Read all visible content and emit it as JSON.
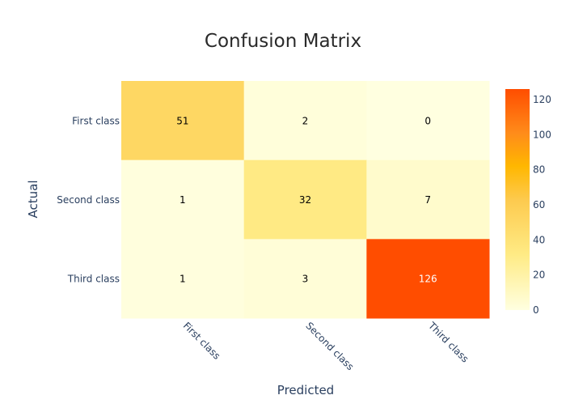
{
  "chart_data": {
    "type": "heatmap",
    "title": "Confusion Matrix",
    "xlabel": "Predicted",
    "ylabel": "Actual",
    "x_categories": [
      "First class",
      "Second class",
      "Third class"
    ],
    "y_categories": [
      "First class",
      "Second class",
      "Third class"
    ],
    "z": [
      [
        51,
        2,
        0
      ],
      [
        1,
        32,
        7
      ],
      [
        1,
        3,
        126
      ]
    ],
    "colorscale": [
      [
        0.0,
        "#ffffe0"
      ],
      [
        0.25,
        "#ffeb85"
      ],
      [
        0.5,
        "#fdca4e"
      ],
      [
        0.65,
        "#ffb700"
      ],
      [
        0.8,
        "#ff8c1a"
      ],
      [
        1.0,
        "#ff4d00"
      ]
    ],
    "zmin": 0,
    "zmax": 126,
    "colorbar_ticks": [
      0,
      20,
      40,
      60,
      80,
      100,
      120
    ],
    "colors": {
      "title": "#2a2a2a",
      "axis_text": "#2a3f5f",
      "cell_text_dark": "#000000",
      "cell_text_light": "#ffffff"
    }
  }
}
